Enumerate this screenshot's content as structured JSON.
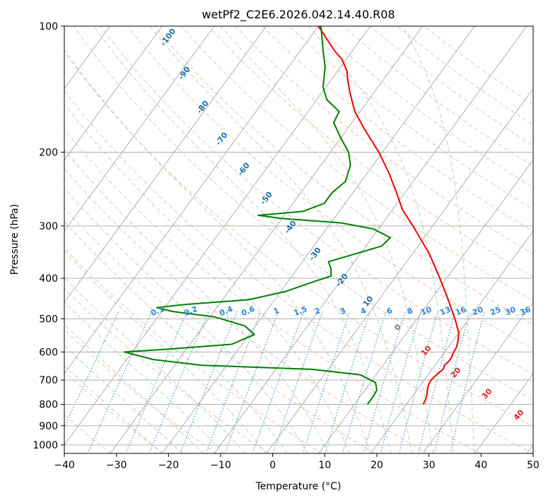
{
  "chart_data": {
    "type": "skew-t",
    "title": "wetPf2_C2E6.2026.042.14.40.R08",
    "xlabel": "Temperature (°C)",
    "ylabel": "Pressure (hPa)",
    "xlim": [
      -40,
      50
    ],
    "ylim": [
      1050,
      100
    ],
    "x_ticks": [
      -40,
      -30,
      -20,
      -10,
      0,
      10,
      20,
      30,
      40,
      50
    ],
    "x_tick_labels": [
      "−40",
      "−30",
      "−20",
      "−10",
      "0",
      "10",
      "20",
      "30",
      "40",
      "50"
    ],
    "y_ticks": [
      1000,
      900,
      800,
      700,
      600,
      500,
      400,
      300,
      200,
      100
    ],
    "y_tick_labels": [
      "1000",
      "900",
      "800",
      "700",
      "600",
      "500",
      "400",
      "300",
      "200",
      "100"
    ],
    "temperature_profile": {
      "name": "Temperature",
      "color": "#ee0000",
      "points": [
        {
          "p": 800,
          "t": 23.2
        },
        {
          "p": 780,
          "t": 23.0
        },
        {
          "p": 760,
          "t": 22.6
        },
        {
          "p": 740,
          "t": 22.0
        },
        {
          "p": 720,
          "t": 21.5
        },
        {
          "p": 700,
          "t": 21.3
        },
        {
          "p": 680,
          "t": 21.6
        },
        {
          "p": 660,
          "t": 22.1
        },
        {
          "p": 645,
          "t": 21.8
        },
        {
          "p": 630,
          "t": 22.1
        },
        {
          "p": 615,
          "t": 22.0
        },
        {
          "p": 600,
          "t": 21.7
        },
        {
          "p": 585,
          "t": 21.6
        },
        {
          "p": 565,
          "t": 21.0
        },
        {
          "p": 540,
          "t": 20.0
        },
        {
          "p": 500,
          "t": 17.3
        },
        {
          "p": 450,
          "t": 13.3
        },
        {
          "p": 400,
          "t": 8.7
        },
        {
          "p": 350,
          "t": 3.3
        },
        {
          "p": 300,
          "t": -3.8
        },
        {
          "p": 275,
          "t": -8.0
        },
        {
          "p": 250,
          "t": -11.6
        },
        {
          "p": 225,
          "t": -15.7
        },
        {
          "p": 200,
          "t": -20.7
        },
        {
          "p": 175,
          "t": -27.0
        },
        {
          "p": 160,
          "t": -31.0
        },
        {
          "p": 145,
          "t": -34.4
        },
        {
          "p": 135,
          "t": -36.7
        },
        {
          "p": 128,
          "t": -38.2
        },
        {
          "p": 120,
          "t": -40.8
        },
        {
          "p": 115,
          "t": -43.2
        },
        {
          "p": 110,
          "t": -45.4
        },
        {
          "p": 105,
          "t": -47.6
        },
        {
          "p": 100,
          "t": -50.0
        }
      ]
    },
    "dewpoint_profile": {
      "name": "Dewpoint",
      "color": "#008000",
      "points": [
        {
          "p": 800,
          "t": 12.5
        },
        {
          "p": 770,
          "t": 12.5
        },
        {
          "p": 740,
          "t": 12.3
        },
        {
          "p": 710,
          "t": 11.0
        },
        {
          "p": 680,
          "t": 7.0
        },
        {
          "p": 660,
          "t": -3.0
        },
        {
          "p": 645,
          "t": -25.0
        },
        {
          "p": 625,
          "t": -35.0
        },
        {
          "p": 600,
          "t": -41.5
        },
        {
          "p": 590,
          "t": -33.0
        },
        {
          "p": 575,
          "t": -22.0
        },
        {
          "p": 545,
          "t": -19.0
        },
        {
          "p": 520,
          "t": -22.0
        },
        {
          "p": 495,
          "t": -29.0
        },
        {
          "p": 480,
          "t": -38.0
        },
        {
          "p": 470,
          "t": -41.5
        },
        {
          "p": 462,
          "t": -36.5
        },
        {
          "p": 450,
          "t": -25.0
        },
        {
          "p": 430,
          "t": -19.0
        },
        {
          "p": 410,
          "t": -15.5
        },
        {
          "p": 395,
          "t": -12.5
        },
        {
          "p": 380,
          "t": -13.5
        },
        {
          "p": 365,
          "t": -15.0
        },
        {
          "p": 350,
          "t": -11.0
        },
        {
          "p": 335,
          "t": -7.0
        },
        {
          "p": 320,
          "t": -6.5
        },
        {
          "p": 305,
          "t": -11.0
        },
        {
          "p": 295,
          "t": -18.0
        },
        {
          "p": 288,
          "t": -30.0
        },
        {
          "p": 283,
          "t": -35.0
        },
        {
          "p": 277,
          "t": -27.0
        },
        {
          "p": 265,
          "t": -24.0
        },
        {
          "p": 250,
          "t": -24.0
        },
        {
          "p": 235,
          "t": -23.0
        },
        {
          "p": 215,
          "t": -24.3
        },
        {
          "p": 200,
          "t": -26.5
        },
        {
          "p": 185,
          "t": -30.0
        },
        {
          "p": 170,
          "t": -33.5
        },
        {
          "p": 160,
          "t": -34.0
        },
        {
          "p": 150,
          "t": -38.0
        },
        {
          "p": 140,
          "t": -40.5
        },
        {
          "p": 125,
          "t": -43.0
        },
        {
          "p": 115,
          "t": -45.5
        },
        {
          "p": 100,
          "t": -49.5
        }
      ]
    },
    "isotherm_labels": [
      {
        "value": 10,
        "text": "10"
      },
      {
        "value": 0,
        "text": "0"
      },
      {
        "value": -10,
        "text": "-10"
      },
      {
        "value": -20,
        "text": "-20"
      },
      {
        "value": -30,
        "text": "-30"
      },
      {
        "value": -40,
        "text": "-40"
      },
      {
        "value": -50,
        "text": "-50"
      },
      {
        "value": -60,
        "text": "-60"
      },
      {
        "value": -70,
        "text": "-70"
      },
      {
        "value": -80,
        "text": "-80"
      },
      {
        "value": -90,
        "text": "-90"
      },
      {
        "value": -100,
        "text": "-100"
      }
    ],
    "warm_isotherm_labels": [
      {
        "value": 0,
        "text": "0"
      },
      {
        "value": 10,
        "text": "10"
      },
      {
        "value": 20,
        "text": "20"
      },
      {
        "value": 30,
        "text": "30"
      },
      {
        "value": 40,
        "text": "40"
      }
    ],
    "mixing_ratio_labels": [
      "0.1",
      "0.2",
      "0.4",
      "0.6",
      "1",
      "1.5",
      "2",
      "3",
      "4",
      "6",
      "8",
      "10",
      "13",
      "16",
      "20",
      "25",
      "30",
      "36"
    ],
    "mixing_ratio_values": [
      0.1,
      0.2,
      0.4,
      0.6,
      1,
      1.5,
      2,
      3,
      4,
      6,
      8,
      10,
      13,
      16,
      20,
      25,
      30,
      36
    ],
    "colors": {
      "background_isotherm": "#b0b0b0",
      "dry_adiabat": "#f5a890",
      "moist_adiabat": "#93c893",
      "mixing_ratio": "#2e86d9",
      "cold_label": "#1f6fa8",
      "warm_label": "#d62728",
      "zero_label": "#777777",
      "grid": "#b0b0b0"
    }
  }
}
